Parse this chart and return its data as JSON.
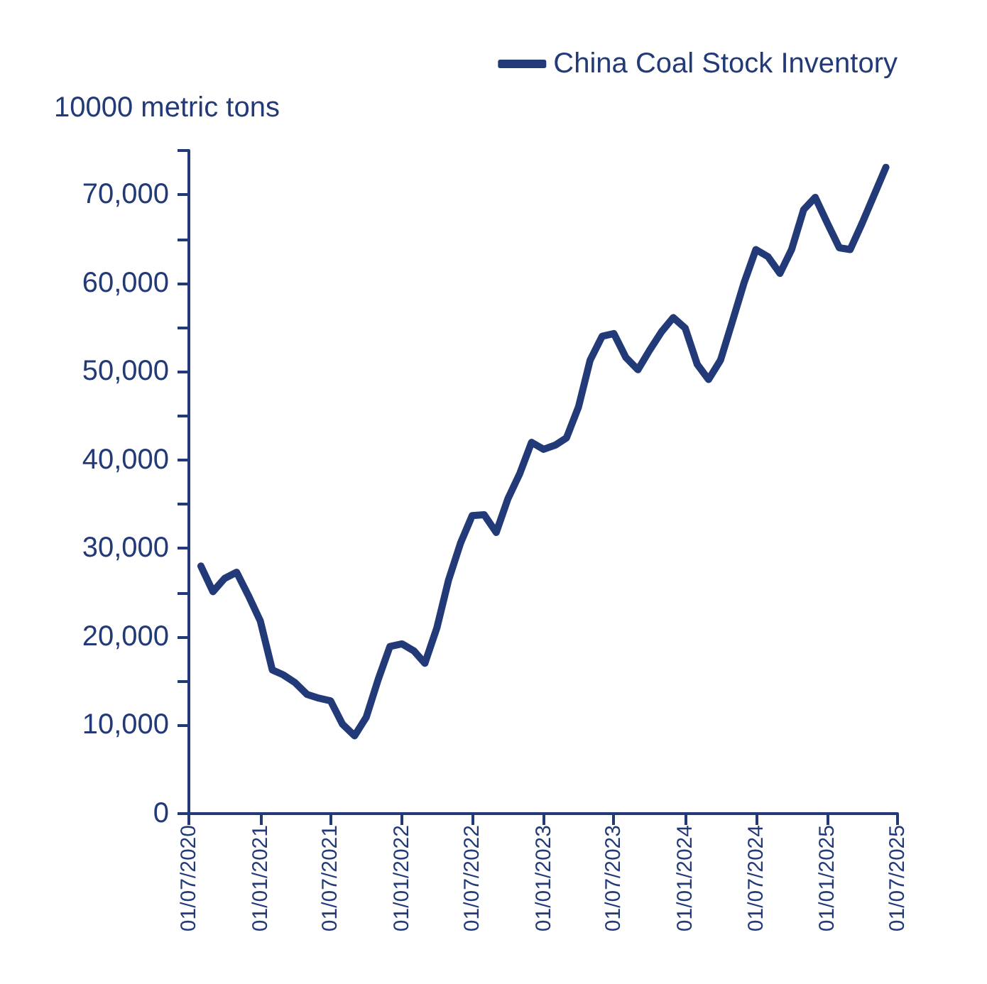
{
  "chart_data": {
    "type": "line",
    "ylabel": "10000 metric tons",
    "legend": "top right",
    "grid": false,
    "marker": "none",
    "line_style": "solid",
    "x": [
      "2020-08",
      "2020-09",
      "2020-10",
      "2020-11",
      "2020-12",
      "2021-01",
      "2021-02",
      "2021-03",
      "2021-04",
      "2021-05",
      "2021-06",
      "2021-07",
      "2021-08",
      "2021-09",
      "2021-10",
      "2021-11",
      "2021-12",
      "2022-01",
      "2022-02",
      "2022-03",
      "2022-04",
      "2022-05",
      "2022-06",
      "2022-07",
      "2022-08",
      "2022-09",
      "2022-10",
      "2022-11",
      "2022-12",
      "2023-01",
      "2023-02",
      "2023-03",
      "2023-04",
      "2023-05",
      "2023-06",
      "2023-07",
      "2023-08",
      "2023-09",
      "2023-10",
      "2023-11",
      "2023-12",
      "2024-01",
      "2024-02",
      "2024-03",
      "2024-04",
      "2024-05",
      "2024-06",
      "2024-07",
      "2024-08",
      "2024-09",
      "2024-10",
      "2024-11",
      "2024-12",
      "2025-01",
      "2025-02",
      "2025-03",
      "2025-04",
      "2025-05",
      "2025-06"
    ],
    "series": [
      {
        "name": "China Coal Stock Inventory",
        "color": "#233a78",
        "values": [
          28000,
          25100,
          26600,
          27300,
          24700,
          21800,
          16250,
          15700,
          14800,
          13500,
          13050,
          12760,
          10100,
          8800,
          10900,
          15200,
          18900,
          19200,
          18400,
          17000,
          21000,
          26400,
          30600,
          33700,
          33800,
          31800,
          35600,
          38500,
          42000,
          41200,
          41700,
          42500,
          46000,
          51300,
          54000,
          54300,
          51600,
          50200,
          52400,
          54500,
          56100,
          54900,
          50800,
          49100,
          51300,
          55600,
          60100,
          63800,
          63000,
          61100,
          63800,
          68300,
          69700,
          66800,
          64000,
          63800,
          66800,
          69900,
          73100
        ]
      }
    ],
    "xlim": [
      "2020-07",
      "2025-07"
    ],
    "xticks": [
      {
        "value": "2020-07",
        "label": "01/07/2020"
      },
      {
        "value": "2021-01",
        "label": "01/01/2021"
      },
      {
        "value": "2021-07",
        "label": "01/07/2021"
      },
      {
        "value": "2022-01",
        "label": "01/01/2022"
      },
      {
        "value": "2022-07",
        "label": "01/07/2022"
      },
      {
        "value": "2023-01",
        "label": "01/01/2023"
      },
      {
        "value": "2023-07",
        "label": "01/07/2023"
      },
      {
        "value": "2024-01",
        "label": "01/01/2024"
      },
      {
        "value": "2024-07",
        "label": "01/07/2024"
      },
      {
        "value": "2025-01",
        "label": "01/01/2025"
      },
      {
        "value": "2025-07",
        "label": "01/07/2025"
      }
    ],
    "ylim": [
      0,
      75000
    ],
    "yticks": [
      {
        "value": 0,
        "label": "0"
      },
      {
        "value": 10000,
        "label": "10,000"
      },
      {
        "value": 15000,
        "label": null
      },
      {
        "value": 20000,
        "label": "20,000"
      },
      {
        "value": 25000,
        "label": null
      },
      {
        "value": 30000,
        "label": "30,000"
      },
      {
        "value": 35000,
        "label": null
      },
      {
        "value": 40000,
        "label": "40,000"
      },
      {
        "value": 45000,
        "label": null
      },
      {
        "value": 50000,
        "label": "50,000"
      },
      {
        "value": 55000,
        "label": null
      },
      {
        "value": 60000,
        "label": "60,000"
      },
      {
        "value": 65000,
        "label": null
      },
      {
        "value": 70000,
        "label": "70,000"
      },
      {
        "value": 75000,
        "label": null
      }
    ]
  }
}
